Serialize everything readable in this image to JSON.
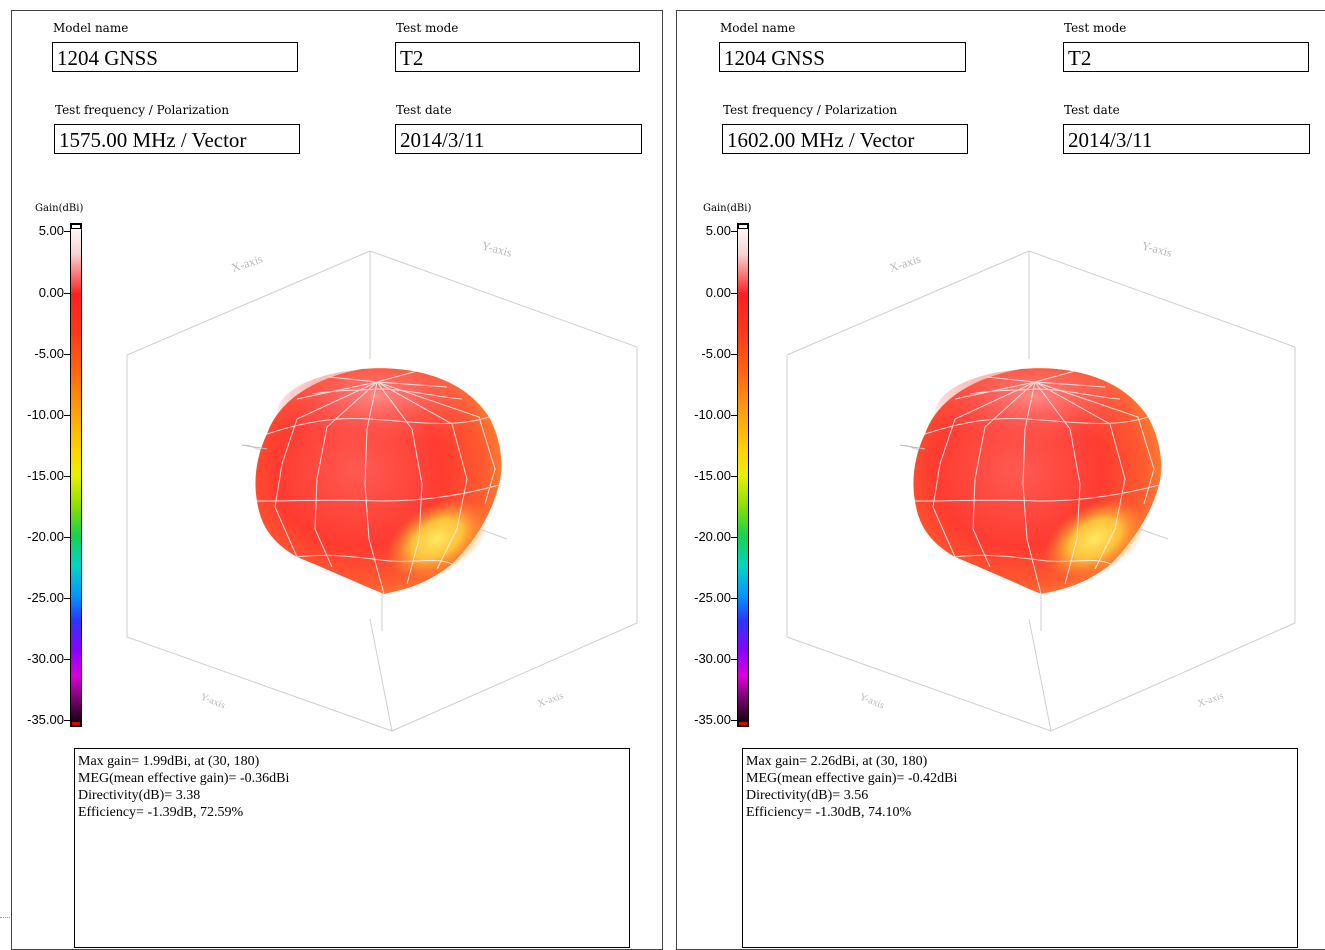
{
  "gain_axis": {
    "title": "Gain(dBi)",
    "ticks": [
      "5.00",
      "0.00",
      "-5.00",
      "-10.00",
      "-15.00",
      "-20.00",
      "-25.00",
      "-30.00",
      "-35.00"
    ]
  },
  "axis_labels": {
    "x": "X-axis",
    "y": "Y-axis"
  },
  "panels": [
    {
      "model_name_label": "Model name",
      "model_name": "1204 GNSS",
      "test_mode_label": "Test mode",
      "test_mode": "T2",
      "freq_label": "Test frequency / Polarization",
      "freq": "1575.00 MHz / Vector",
      "date_label": "Test date",
      "date": "2014/3/11",
      "stats": [
        "Max gain= 1.99dBi, at (30, 180)",
        "MEG(mean effective gain)= -0.36dBi",
        "Directivity(dB)= 3.38",
        "Efficiency= -1.39dB, 72.59%"
      ]
    },
    {
      "model_name_label": "Model name",
      "model_name": "1204 GNSS",
      "test_mode_label": "Test mode",
      "test_mode": "T2",
      "freq_label": "Test frequency / Polarization",
      "freq": "1602.00 MHz / Vector",
      "date_label": "Test date",
      "date": "2014/3/11",
      "stats": [
        "Max gain= 2.26dBi, at (30, 180)",
        "MEG(mean effective gain)= -0.42dBi",
        "Directivity(dB)= 3.56",
        "Efficiency= -1.30dB, 74.10%"
      ]
    }
  ],
  "colors": {
    "pattern_red": "#ff3b3b",
    "pattern_yellow": "#ffd24a",
    "grid": "#c8c8c8"
  }
}
